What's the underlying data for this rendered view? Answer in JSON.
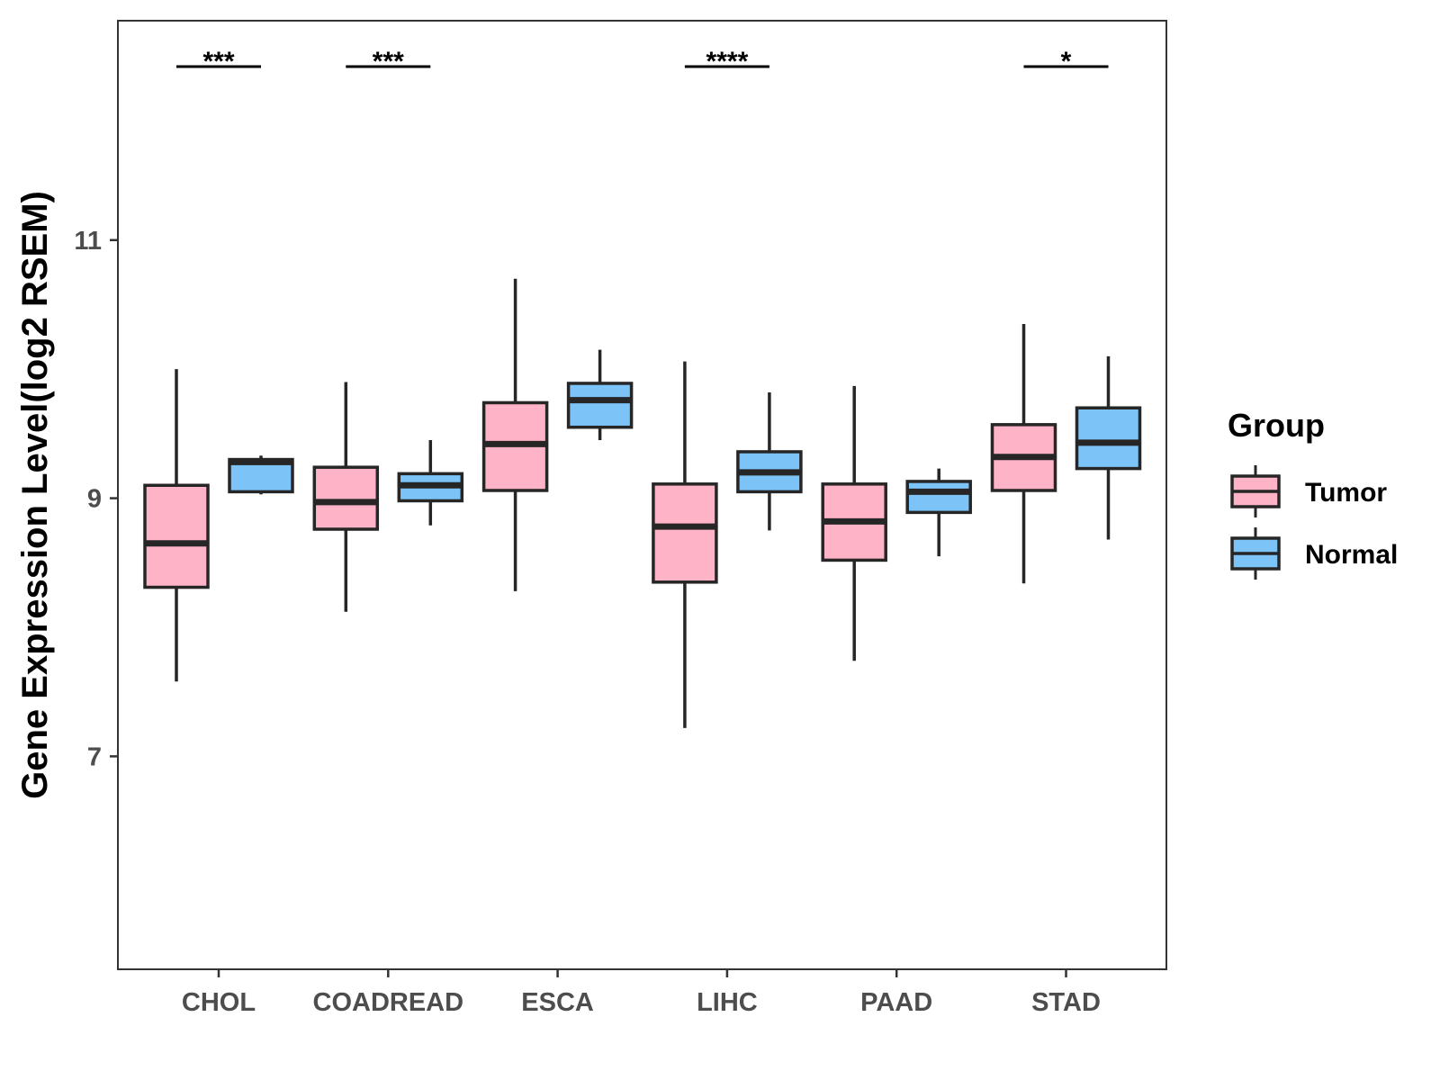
{
  "chart_data": {
    "type": "boxplot",
    "title": "",
    "xlabel": "",
    "ylabel": "Gene Expression Level(log2 RSEM)",
    "ylim": [
      5.35,
      12.7
    ],
    "yticks": [
      7,
      9,
      11
    ],
    "ytick_labels": [
      "7",
      "9",
      "11"
    ],
    "grid": false,
    "categories": [
      "CHOL",
      "COADREAD",
      "ESCA",
      "LIHC",
      "PAAD",
      "STAD"
    ],
    "legend": {
      "title": "Group",
      "position": "right",
      "entries": [
        {
          "name": "Tumor",
          "color": "#FFB3C6"
        },
        {
          "name": "Normal",
          "color": "#7CC4F8"
        }
      ]
    },
    "series": [
      {
        "name": "Tumor",
        "color": "#FFB3C6",
        "boxes": [
          {
            "category": "CHOL",
            "whisker_low": 7.58,
            "q1": 8.31,
            "median": 8.65,
            "q3": 9.1,
            "whisker_high": 10.0
          },
          {
            "category": "COADREAD",
            "whisker_low": 8.12,
            "q1": 8.76,
            "median": 8.97,
            "q3": 9.24,
            "whisker_high": 9.9
          },
          {
            "category": "ESCA",
            "whisker_low": 8.28,
            "q1": 9.06,
            "median": 9.42,
            "q3": 9.74,
            "whisker_high": 10.7
          },
          {
            "category": "LIHC",
            "whisker_low": 7.22,
            "q1": 8.35,
            "median": 8.78,
            "q3": 9.11,
            "whisker_high": 10.06
          },
          {
            "category": "PAAD",
            "whisker_low": 7.74,
            "q1": 8.52,
            "median": 8.82,
            "q3": 9.11,
            "whisker_high": 9.87
          },
          {
            "category": "STAD",
            "whisker_low": 8.34,
            "q1": 9.06,
            "median": 9.32,
            "q3": 9.57,
            "whisker_high": 10.35
          }
        ]
      },
      {
        "name": "Normal",
        "color": "#7CC4F8",
        "boxes": [
          {
            "category": "CHOL",
            "whisker_low": 9.03,
            "q1": 9.05,
            "median": 9.28,
            "q3": 9.3,
            "whisker_high": 9.33
          },
          {
            "category": "COADREAD",
            "whisker_low": 8.79,
            "q1": 8.98,
            "median": 9.1,
            "q3": 9.19,
            "whisker_high": 9.45
          },
          {
            "category": "ESCA",
            "whisker_low": 9.45,
            "q1": 9.55,
            "median": 9.76,
            "q3": 9.89,
            "whisker_high": 10.15
          },
          {
            "category": "LIHC",
            "whisker_low": 8.75,
            "q1": 9.05,
            "median": 9.2,
            "q3": 9.36,
            "whisker_high": 9.82
          },
          {
            "category": "PAAD",
            "whisker_low": 8.55,
            "q1": 8.89,
            "median": 9.05,
            "q3": 9.13,
            "whisker_high": 9.23
          },
          {
            "category": "STAD",
            "whisker_low": 8.68,
            "q1": 9.23,
            "median": 9.43,
            "q3": 9.7,
            "whisker_high": 10.1
          }
        ]
      }
    ],
    "annotations": [
      {
        "category": "CHOL",
        "text": "***"
      },
      {
        "category": "COADREAD",
        "text": "***"
      },
      {
        "category": "LIHC",
        "text": "****"
      },
      {
        "category": "STAD",
        "text": "*"
      }
    ]
  }
}
